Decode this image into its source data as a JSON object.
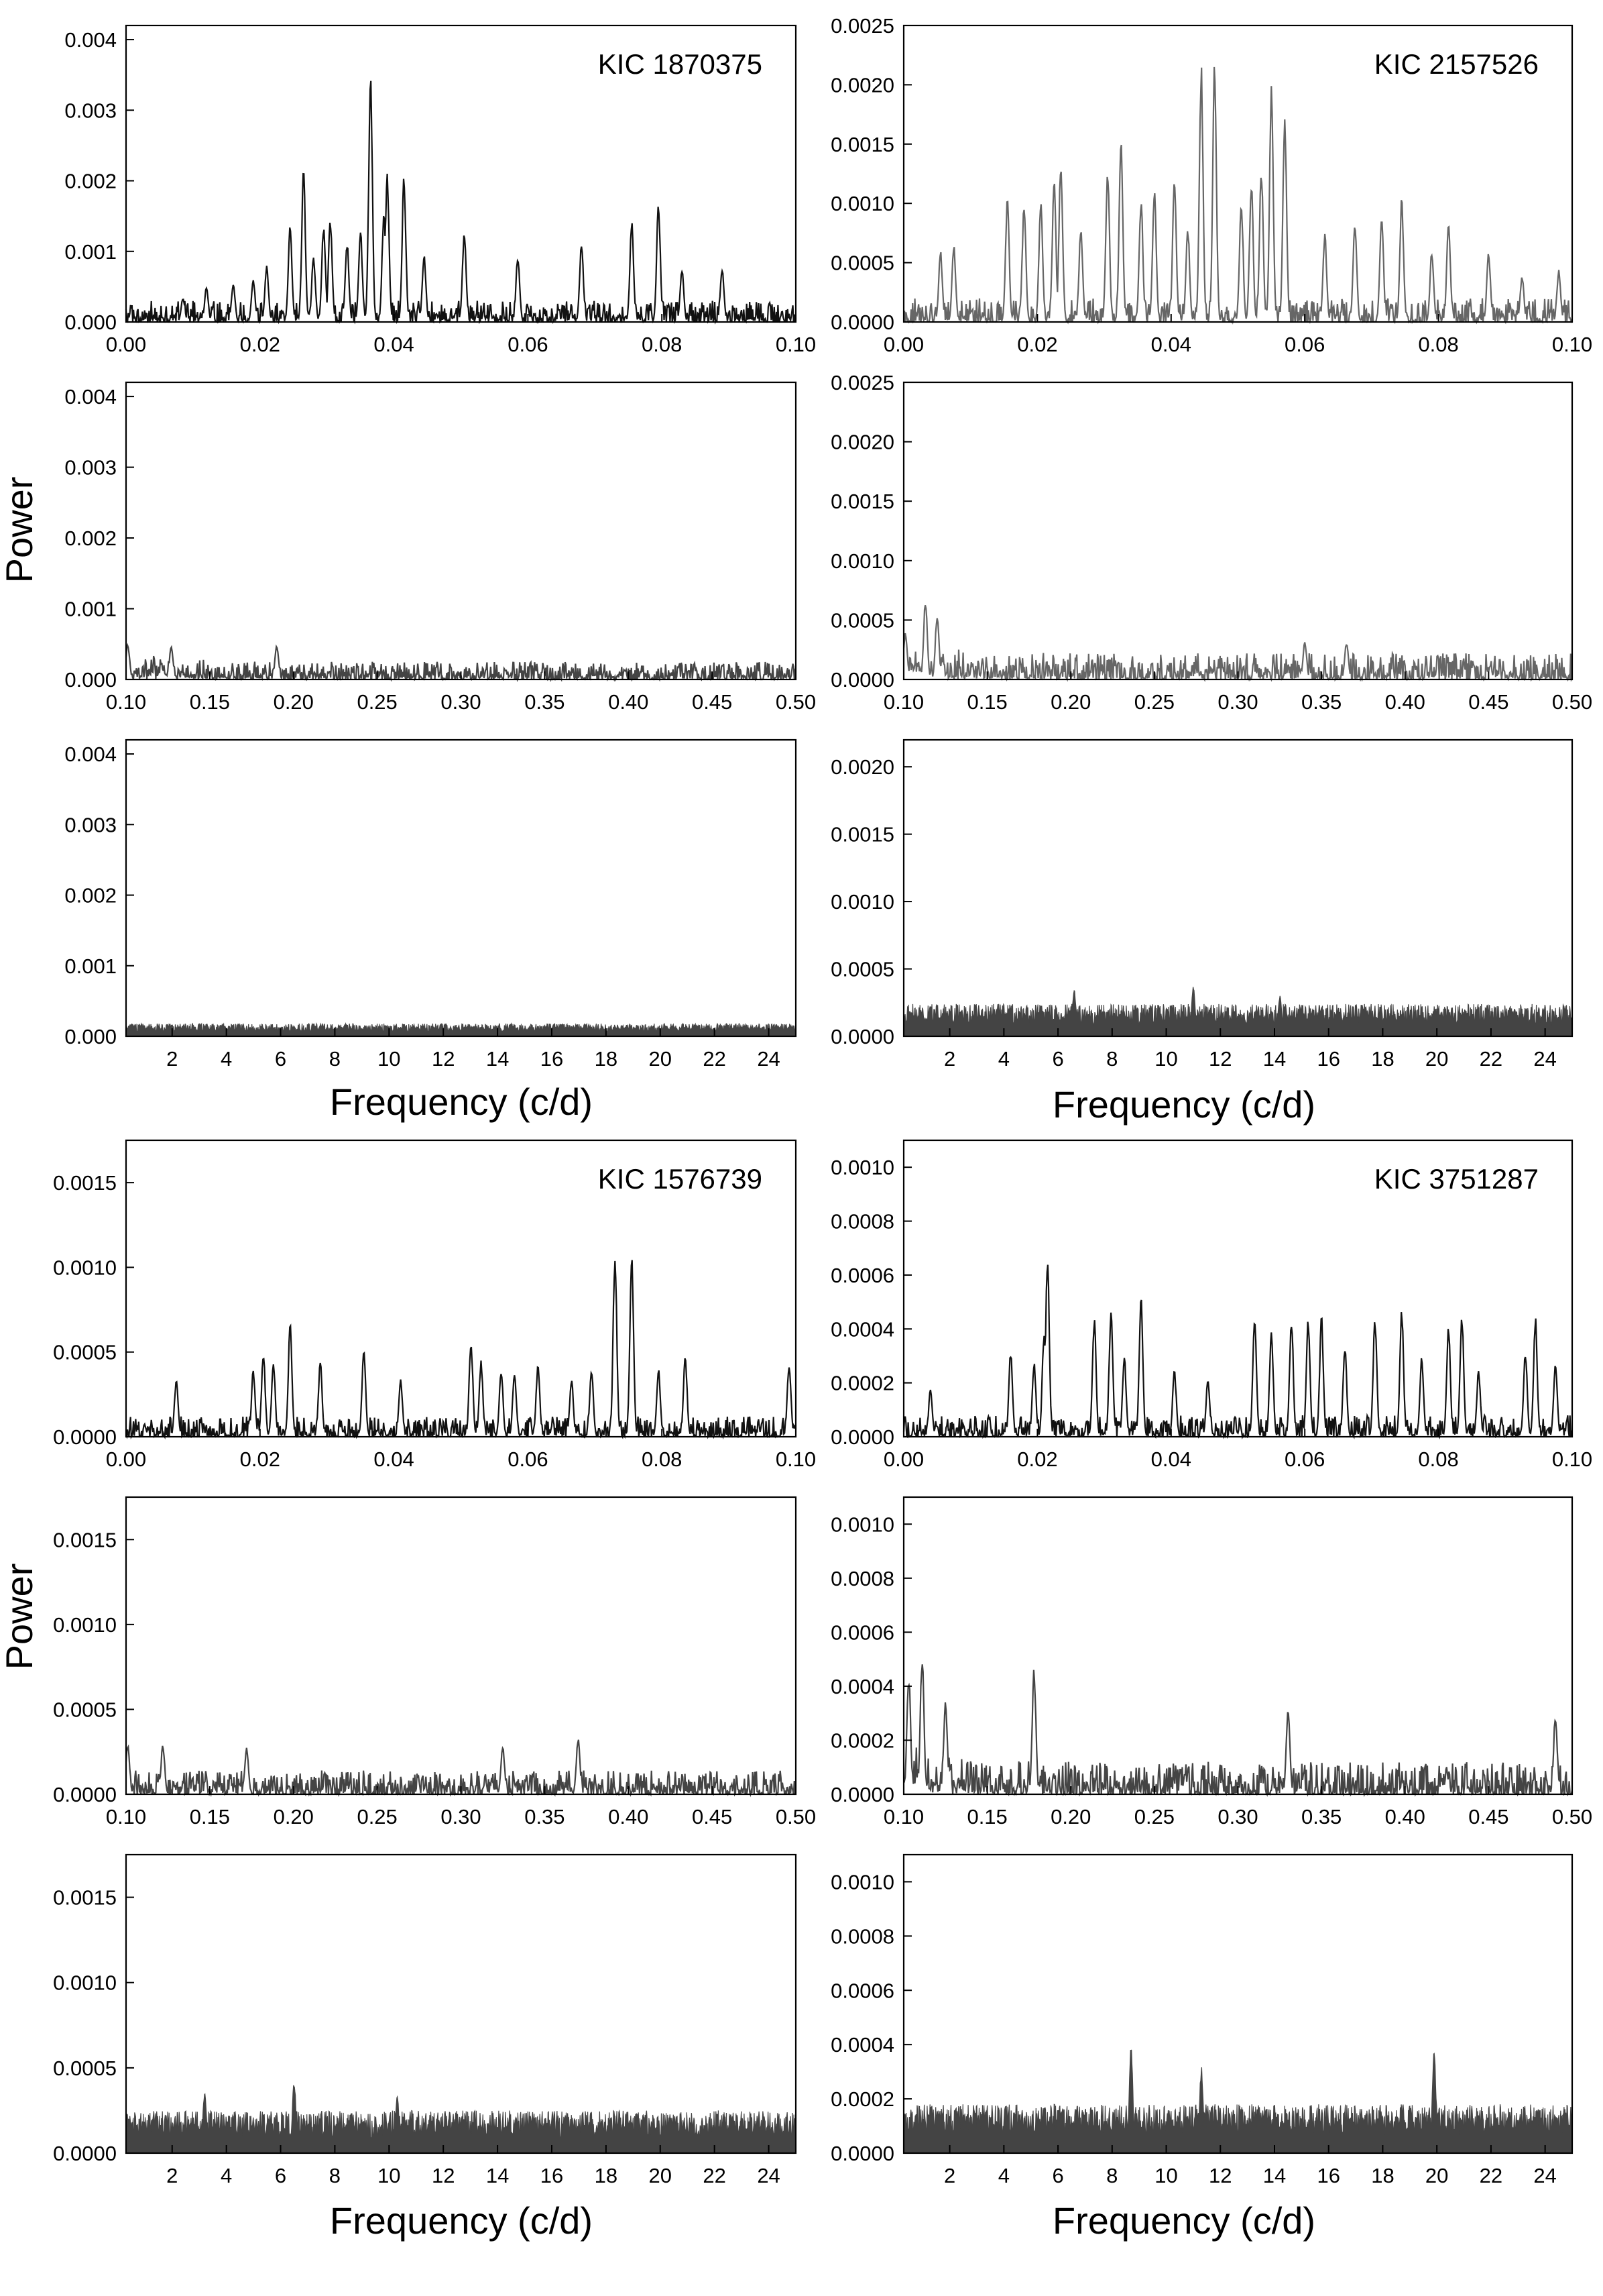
{
  "figure": {
    "ylabel": "Power",
    "xlabel": "Frequency  (c/d)"
  },
  "chart_data": [
    {
      "panel": "1870375-low",
      "type": "line",
      "annotation": "KIC 1870375",
      "xlim": [
        0,
        0.1
      ],
      "ylim": [
        0,
        0.0042
      ],
      "xticks": [
        "0.00",
        "0.02",
        "0.04",
        "0.06",
        "0.08",
        "0.10"
      ],
      "xtick_values": [
        0,
        0.02,
        0.04,
        0.06,
        0.08,
        0.1
      ],
      "yticks": [
        "0.000",
        "0.001",
        "0.002",
        "0.003",
        "0.004"
      ],
      "ytick_values": [
        0,
        0.001,
        0.002,
        0.003,
        0.004
      ],
      "noise_level": 0.0003,
      "peaks": [
        [
          0.0085,
          0.00035
        ],
        [
          0.012,
          0.0005
        ],
        [
          0.016,
          0.00055
        ],
        [
          0.019,
          0.0006
        ],
        [
          0.021,
          0.0008
        ],
        [
          0.0245,
          0.0014
        ],
        [
          0.0265,
          0.00215
        ],
        [
          0.028,
          0.00095
        ],
        [
          0.0295,
          0.0014
        ],
        [
          0.0305,
          0.0015
        ],
        [
          0.033,
          0.00115
        ],
        [
          0.035,
          0.0013
        ],
        [
          0.0365,
          0.0036
        ],
        [
          0.0385,
          0.0016
        ],
        [
          0.039,
          0.00215
        ],
        [
          0.0415,
          0.0021
        ],
        [
          0.0445,
          0.00095
        ],
        [
          0.0505,
          0.0013
        ],
        [
          0.0585,
          0.00095
        ],
        [
          0.068,
          0.00115
        ],
        [
          0.0755,
          0.00145
        ],
        [
          0.0795,
          0.0017
        ],
        [
          0.083,
          0.00075
        ],
        [
          0.089,
          0.0008
        ]
      ],
      "stroke": "#111111"
    },
    {
      "panel": "1870375-mid",
      "type": "line",
      "xlim": [
        0.1,
        0.5
      ],
      "ylim": [
        0,
        0.0042
      ],
      "xticks": [
        "0.10",
        "0.15",
        "0.20",
        "0.25",
        "0.30",
        "0.35",
        "0.40",
        "0.45",
        "0.50"
      ],
      "xtick_values": [
        0.1,
        0.15,
        0.2,
        0.25,
        0.3,
        0.35,
        0.4,
        0.45,
        0.5
      ],
      "yticks": [
        "0.000",
        "0.001",
        "0.002",
        "0.003",
        "0.004"
      ],
      "ytick_values": [
        0,
        0.001,
        0.002,
        0.003,
        0.004
      ],
      "noise_level": 0.00025,
      "noise_decay": 0.00015,
      "peaks": [
        [
          0.101,
          0.00052
        ],
        [
          0.127,
          0.00048
        ],
        [
          0.19,
          0.0005
        ]
      ],
      "stroke": "#444444"
    },
    {
      "panel": "1870375-high",
      "type": "line",
      "xlim": [
        0.3,
        25
      ],
      "ylim": [
        0,
        0.0042
      ],
      "xticks": [
        "2",
        "4",
        "6",
        "8",
        "10",
        "12",
        "14",
        "16",
        "18",
        "20",
        "22",
        "24"
      ],
      "xtick_values": [
        2,
        4,
        6,
        8,
        10,
        12,
        14,
        16,
        18,
        20,
        22,
        24
      ],
      "yticks": [
        "0.000",
        "0.001",
        "0.002",
        "0.003",
        "0.004"
      ],
      "ytick_values": [
        0,
        0.001,
        0.002,
        0.003,
        0.004
      ],
      "noise_level": 0.00018,
      "filled": true,
      "peaks": [],
      "stroke": "#444444"
    },
    {
      "panel": "2157526-low",
      "type": "line",
      "annotation": "KIC 2157526",
      "xlim": [
        0,
        0.1
      ],
      "ylim": [
        0,
        0.0025
      ],
      "xticks": [
        "0.00",
        "0.02",
        "0.04",
        "0.06",
        "0.08",
        "0.10"
      ],
      "xtick_values": [
        0,
        0.02,
        0.04,
        0.06,
        0.08,
        0.1
      ],
      "yticks": [
        "0.0000",
        "0.0005",
        "0.0010",
        "0.0015",
        "0.0020",
        "0.0025"
      ],
      "ytick_values": [
        0,
        0.0005,
        0.001,
        0.0015,
        0.002,
        0.0025
      ],
      "noise_level": 0.0002,
      "peaks": [
        [
          0.0055,
          0.0006
        ],
        [
          0.0075,
          0.00065
        ],
        [
          0.0155,
          0.00105
        ],
        [
          0.018,
          0.001
        ],
        [
          0.0205,
          0.00105
        ],
        [
          0.0225,
          0.0012
        ],
        [
          0.0235,
          0.0014
        ],
        [
          0.0265,
          0.0008
        ],
        [
          0.0305,
          0.0013
        ],
        [
          0.0325,
          0.00155
        ],
        [
          0.0355,
          0.00105
        ],
        [
          0.0375,
          0.00115
        ],
        [
          0.0405,
          0.0012
        ],
        [
          0.0425,
          0.0008
        ],
        [
          0.0445,
          0.0022
        ],
        [
          0.0465,
          0.0022
        ],
        [
          0.0505,
          0.00105
        ],
        [
          0.052,
          0.0012
        ],
        [
          0.0535,
          0.0013
        ],
        [
          0.055,
          0.002
        ],
        [
          0.057,
          0.0018
        ],
        [
          0.063,
          0.00075
        ],
        [
          0.0675,
          0.00085
        ],
        [
          0.0715,
          0.00095
        ],
        [
          0.0745,
          0.00105
        ],
        [
          0.079,
          0.0006
        ],
        [
          0.0815,
          0.00085
        ],
        [
          0.0875,
          0.0006
        ],
        [
          0.0925,
          0.0004
        ],
        [
          0.098,
          0.00045
        ]
      ],
      "stroke": "#666666"
    },
    {
      "panel": "2157526-mid",
      "type": "line",
      "xlim": [
        0.1,
        0.5
      ],
      "ylim": [
        0,
        0.0025
      ],
      "xticks": [
        "0.10",
        "0.15",
        "0.20",
        "0.25",
        "0.30",
        "0.35",
        "0.40",
        "0.45",
        "0.50"
      ],
      "xtick_values": [
        0.1,
        0.15,
        0.2,
        0.25,
        0.3,
        0.35,
        0.4,
        0.45,
        0.5
      ],
      "yticks": [
        "0.0000",
        "0.0005",
        "0.0010",
        "0.0015",
        "0.0020",
        "0.0025"
      ],
      "ytick_values": [
        0,
        0.0005,
        0.001,
        0.0015,
        0.002,
        0.0025
      ],
      "noise_level": 0.00022,
      "noise_decay": 0.0001,
      "peaks": [
        [
          0.101,
          0.0004
        ],
        [
          0.113,
          0.00068
        ],
        [
          0.12,
          0.00055
        ],
        [
          0.34,
          0.00032
        ],
        [
          0.365,
          0.00032
        ]
      ],
      "stroke": "#666666"
    },
    {
      "panel": "2157526-high",
      "type": "line",
      "xlim": [
        0.3,
        25
      ],
      "ylim": [
        0,
        0.0022
      ],
      "xticks": [
        "2",
        "4",
        "6",
        "8",
        "10",
        "12",
        "14",
        "16",
        "18",
        "20",
        "22",
        "24"
      ],
      "xtick_values": [
        2,
        4,
        6,
        8,
        10,
        12,
        14,
        16,
        18,
        20,
        22,
        24
      ],
      "yticks": [
        "0.0000",
        "0.0005",
        "0.0010",
        "0.0015",
        "0.0020"
      ],
      "ytick_values": [
        0,
        0.0005,
        0.001,
        0.0015,
        0.002
      ],
      "noise_level": 0.00024,
      "filled": true,
      "peaks": [
        [
          6.6,
          0.00035
        ],
        [
          11,
          0.00038
        ],
        [
          14.2,
          0.0003
        ]
      ],
      "stroke": "#444444"
    },
    {
      "panel": "1576739-low",
      "type": "line",
      "annotation": "KIC 1576739",
      "xlim": [
        0,
        0.1
      ],
      "ylim": [
        0,
        0.00175
      ],
      "xticks": [
        "0.00",
        "0.02",
        "0.04",
        "0.06",
        "0.08",
        "0.10"
      ],
      "xtick_values": [
        0,
        0.02,
        0.04,
        0.06,
        0.08,
        0.1
      ],
      "yticks": [
        "0.0000",
        "0.0005",
        "0.0010",
        "0.0015"
      ],
      "ytick_values": [
        0,
        0.0005,
        0.001,
        0.0015
      ],
      "noise_level": 0.00012,
      "peaks": [
        [
          0.0075,
          0.00035
        ],
        [
          0.019,
          0.0004
        ],
        [
          0.0205,
          0.0005
        ],
        [
          0.022,
          0.00045
        ],
        [
          0.0245,
          0.00068
        ],
        [
          0.029,
          0.00045
        ],
        [
          0.0355,
          0.00053
        ],
        [
          0.041,
          0.00035
        ],
        [
          0.0515,
          0.00058
        ],
        [
          0.053,
          0.00045
        ],
        [
          0.056,
          0.0004
        ],
        [
          0.058,
          0.0004
        ],
        [
          0.0615,
          0.00043
        ],
        [
          0.0665,
          0.00035
        ],
        [
          0.0695,
          0.0004
        ],
        [
          0.073,
          0.0011
        ],
        [
          0.0755,
          0.00112
        ],
        [
          0.0795,
          0.0004
        ],
        [
          0.0835,
          0.00048
        ],
        [
          0.099,
          0.00045
        ]
      ],
      "stroke": "#111111"
    },
    {
      "panel": "1576739-mid",
      "type": "line",
      "xlim": [
        0.1,
        0.5
      ],
      "ylim": [
        0,
        0.00175
      ],
      "xticks": [
        "0.10",
        "0.15",
        "0.20",
        "0.25",
        "0.30",
        "0.35",
        "0.40",
        "0.45",
        "0.50"
      ],
      "xtick_values": [
        0.1,
        0.15,
        0.2,
        0.25,
        0.3,
        0.35,
        0.4,
        0.45,
        0.5
      ],
      "yticks": [
        "0.0000",
        "0.0005",
        "0.0010",
        "0.0015"
      ],
      "ytick_values": [
        0,
        0.0005,
        0.001,
        0.0015
      ],
      "noise_level": 0.00014,
      "peaks": [
        [
          0.101,
          0.0003
        ],
        [
          0.122,
          0.0003
        ],
        [
          0.172,
          0.00028
        ],
        [
          0.325,
          0.00028
        ],
        [
          0.37,
          0.00033
        ]
      ],
      "stroke": "#444444"
    },
    {
      "panel": "1576739-high",
      "type": "line",
      "xlim": [
        0.3,
        25
      ],
      "ylim": [
        0,
        0.00175
      ],
      "xticks": [
        "2",
        "4",
        "6",
        "8",
        "10",
        "12",
        "14",
        "16",
        "18",
        "20",
        "22",
        "24"
      ],
      "xtick_values": [
        2,
        4,
        6,
        8,
        10,
        12,
        14,
        16,
        18,
        20,
        22,
        24
      ],
      "yticks": [
        "0.0000",
        "0.0005",
        "0.0010",
        "0.0015"
      ],
      "ytick_values": [
        0,
        0.0005,
        0.001,
        0.0015
      ],
      "noise_level": 0.00025,
      "filled": true,
      "peaks": [
        [
          3.2,
          0.00037
        ],
        [
          6.5,
          0.00043
        ],
        [
          10.3,
          0.00035
        ]
      ],
      "stroke": "#444444"
    },
    {
      "panel": "3751287-low",
      "type": "line",
      "annotation": "KIC 3751287",
      "xlim": [
        0,
        0.1
      ],
      "ylim": [
        0,
        0.0011
      ],
      "xticks": [
        "0.00",
        "0.02",
        "0.04",
        "0.06",
        "0.08",
        "0.10"
      ],
      "xtick_values": [
        0,
        0.02,
        0.04,
        0.06,
        0.08,
        0.1
      ],
      "yticks": [
        "0.0000",
        "0.0002",
        "0.0004",
        "0.0006",
        "0.0008",
        "0.0010"
      ],
      "ytick_values": [
        0,
        0.0002,
        0.0004,
        0.0006,
        0.0008,
        0.001
      ],
      "noise_level": 8e-05,
      "peaks": [
        [
          0.004,
          0.00018
        ],
        [
          0.016,
          0.00032
        ],
        [
          0.0195,
          0.00028
        ],
        [
          0.021,
          0.0004
        ],
        [
          0.0215,
          0.00068
        ],
        [
          0.0285,
          0.00045
        ],
        [
          0.031,
          0.00048
        ],
        [
          0.033,
          0.0003
        ],
        [
          0.0355,
          0.00052
        ],
        [
          0.0405,
          0.00025
        ],
        [
          0.0455,
          0.00022
        ],
        [
          0.0525,
          0.00045
        ],
        [
          0.055,
          0.0004
        ],
        [
          0.058,
          0.00045
        ],
        [
          0.0605,
          0.00045
        ],
        [
          0.0625,
          0.00045
        ],
        [
          0.066,
          0.00035
        ],
        [
          0.0705,
          0.00045
        ],
        [
          0.0745,
          0.00048
        ],
        [
          0.0775,
          0.0003
        ],
        [
          0.0815,
          0.00042
        ],
        [
          0.0835,
          0.00045
        ],
        [
          0.086,
          0.00025
        ],
        [
          0.093,
          0.00032
        ],
        [
          0.0945,
          0.00045
        ],
        [
          0.0975,
          0.00028
        ]
      ],
      "stroke": "#111111"
    },
    {
      "panel": "3751287-mid",
      "type": "line",
      "xlim": [
        0.1,
        0.5
      ],
      "ylim": [
        0,
        0.0011
      ],
      "xticks": [
        "0.10",
        "0.15",
        "0.20",
        "0.25",
        "0.30",
        "0.35",
        "0.40",
        "0.45",
        "0.50"
      ],
      "xtick_values": [
        0.1,
        0.15,
        0.2,
        0.25,
        0.3,
        0.35,
        0.4,
        0.45,
        0.5
      ],
      "yticks": [
        "0.0000",
        "0.0002",
        "0.0004",
        "0.0006",
        "0.0008",
        "0.0010"
      ],
      "ytick_values": [
        0,
        0.0002,
        0.0004,
        0.0006,
        0.0008,
        0.001
      ],
      "noise_level": 0.00012,
      "noise_decay": 8e-05,
      "peaks": [
        [
          0.103,
          0.00045
        ],
        [
          0.111,
          0.00052
        ],
        [
          0.125,
          0.00035
        ],
        [
          0.178,
          0.00047
        ],
        [
          0.33,
          0.00032
        ],
        [
          0.49,
          0.0003
        ]
      ],
      "stroke": "#444444"
    },
    {
      "panel": "3751287-high",
      "type": "line",
      "xlim": [
        0.3,
        25
      ],
      "ylim": [
        0,
        0.0011
      ],
      "xticks": [
        "2",
        "4",
        "6",
        "8",
        "10",
        "12",
        "14",
        "16",
        "18",
        "20",
        "22",
        "24"
      ],
      "xtick_values": [
        2,
        4,
        6,
        8,
        10,
        12,
        14,
        16,
        18,
        20,
        22,
        24
      ],
      "yticks": [
        "0.0000",
        "0.0002",
        "0.0004",
        "0.0006",
        "0.0008",
        "0.0010"
      ],
      "ytick_values": [
        0,
        0.0002,
        0.0004,
        0.0006,
        0.0008,
        0.001
      ],
      "noise_level": 0.00018,
      "filled": true,
      "peaks": [
        [
          8.7,
          0.0004
        ],
        [
          11.3,
          0.00032
        ],
        [
          19.9,
          0.00038
        ]
      ],
      "stroke": "#444444"
    }
  ]
}
